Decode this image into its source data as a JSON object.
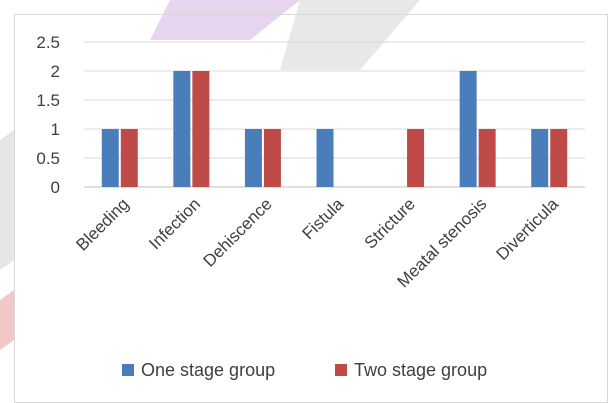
{
  "chart_data": {
    "type": "bar",
    "title": "",
    "xlabel": "",
    "ylabel": "",
    "categories": [
      "Bleeding",
      "Infection",
      "Dehiscence",
      "Fistula",
      "Stricture",
      "Meatal stenosis",
      "Diverticula"
    ],
    "series": [
      {
        "name": "One stage group",
        "color": "#4a7ebb",
        "values": [
          1,
          2,
          1,
          1,
          0,
          2,
          1
        ]
      },
      {
        "name": "Two stage group",
        "color": "#be4b48",
        "values": [
          1,
          2,
          1,
          0,
          1,
          1,
          1
        ]
      }
    ],
    "ylim": [
      0,
      2.5
    ],
    "yticks": [
      "0",
      "0.5",
      "1",
      "1.5",
      "2",
      "2.5"
    ],
    "grid": true,
    "legend_position": "bottom"
  }
}
